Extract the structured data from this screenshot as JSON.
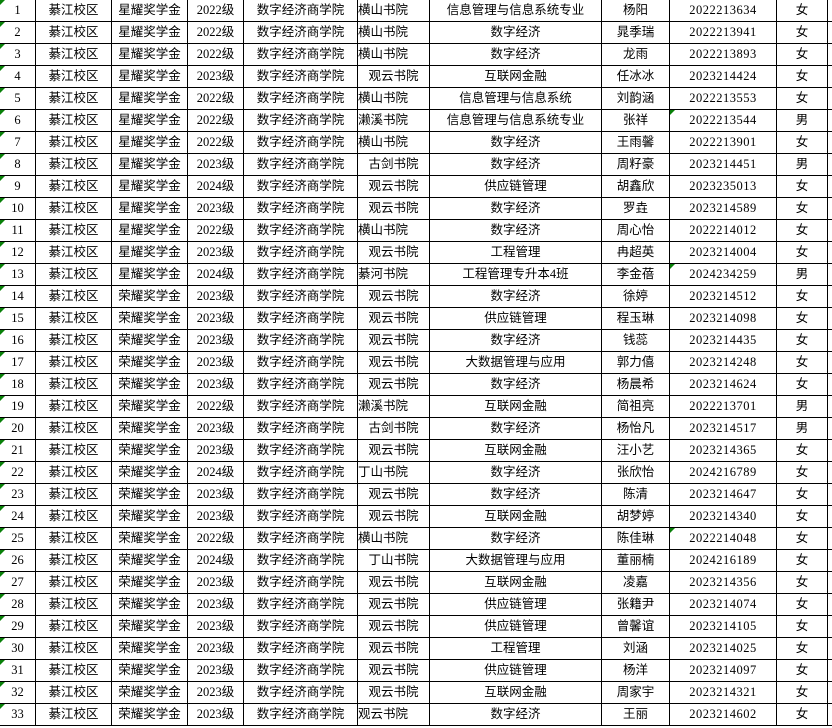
{
  "table": {
    "colors": {
      "grid": "#000000",
      "background": "#ffffff",
      "text": "#000000",
      "comment_triangle": "#088008"
    },
    "column_keys": [
      "index",
      "campus",
      "scholarship",
      "grade",
      "college",
      "academy",
      "major",
      "name",
      "id",
      "gender"
    ],
    "rows": [
      {
        "index": "1",
        "campus": "綦江校区",
        "scholarship": "星耀奖学金",
        "grade": "2022级",
        "college": "数字经济商学院",
        "academy": "横山书院",
        "academy_align": "left",
        "major": "信息管理与信息系统专业",
        "name": "杨阳",
        "id": "2022213634",
        "id_triangle": false,
        "gender": "女"
      },
      {
        "index": "2",
        "campus": "綦江校区",
        "scholarship": "星耀奖学金",
        "grade": "2022级",
        "college": "数字经济商学院",
        "academy": "横山书院",
        "academy_align": "left",
        "major": "数字经济",
        "name": "晁季瑞",
        "id": "2022213941",
        "id_triangle": false,
        "gender": "女"
      },
      {
        "index": "3",
        "campus": "綦江校区",
        "scholarship": "星耀奖学金",
        "grade": "2022级",
        "college": "数字经济商学院",
        "academy": "横山书院",
        "academy_align": "left",
        "major": "数字经济",
        "name": "龙雨",
        "id": "2022213893",
        "id_triangle": false,
        "gender": "女"
      },
      {
        "index": "4",
        "campus": "綦江校区",
        "scholarship": "星耀奖学金",
        "grade": "2023级",
        "college": "数字经济商学院",
        "academy": "观云书院",
        "academy_align": "center",
        "major": "互联网金融",
        "name": "任冰冰",
        "id": "2023214424",
        "id_triangle": false,
        "gender": "女"
      },
      {
        "index": "5",
        "campus": "綦江校区",
        "scholarship": "星耀奖学金",
        "grade": "2022级",
        "college": "数字经济商学院",
        "academy": "横山书院",
        "academy_align": "left",
        "major": "信息管理与信息系统",
        "name": "刘韵涵",
        "id": "2022213553",
        "id_triangle": false,
        "gender": "女"
      },
      {
        "index": "6",
        "campus": "綦江校区",
        "scholarship": "星耀奖学金",
        "grade": "2022级",
        "college": "数字经济商学院",
        "academy": "濑溪书院",
        "academy_align": "left",
        "major": "信息管理与信息系统专业",
        "name": "张祥",
        "id": "2022213544",
        "id_triangle": true,
        "gender": "男"
      },
      {
        "index": "7",
        "campus": "綦江校区",
        "scholarship": "星耀奖学金",
        "grade": "2022级",
        "college": "数字经济商学院",
        "academy": "横山书院",
        "academy_align": "left",
        "major": "数字经济",
        "name": "王雨馨",
        "id": "2022213901",
        "id_triangle": false,
        "gender": "女"
      },
      {
        "index": "8",
        "campus": "綦江校区",
        "scholarship": "星耀奖学金",
        "grade": "2023级",
        "college": "数字经济商学院",
        "academy": "古剑书院",
        "academy_align": "center",
        "major": "数字经济",
        "name": "周籽豪",
        "id": "2023214451",
        "id_triangle": false,
        "gender": "男"
      },
      {
        "index": "9",
        "campus": "綦江校区",
        "scholarship": "星耀奖学金",
        "grade": "2024级",
        "college": "数字经济商学院",
        "academy": "观云书院",
        "academy_align": "center",
        "major": "供应链管理",
        "name": "胡鑫欣",
        "id": "2023235013",
        "id_triangle": false,
        "gender": "女"
      },
      {
        "index": "10",
        "campus": "綦江校区",
        "scholarship": "星耀奖学金",
        "grade": "2023级",
        "college": "数字经济商学院",
        "academy": "观云书院",
        "academy_align": "center",
        "major": "数字经济",
        "name": "罗垚",
        "id": "2023214589",
        "id_triangle": false,
        "gender": "女"
      },
      {
        "index": "11",
        "campus": "綦江校区",
        "scholarship": "星耀奖学金",
        "grade": "2022级",
        "college": "数字经济商学院",
        "academy": "横山书院",
        "academy_align": "left",
        "major": "数字经济",
        "name": "周心怡",
        "id": "2022214012",
        "id_triangle": false,
        "gender": "女"
      },
      {
        "index": "12",
        "campus": "綦江校区",
        "scholarship": "星耀奖学金",
        "grade": "2023级",
        "college": "数字经济商学院",
        "academy": "观云书院",
        "academy_align": "center",
        "major": "工程管理",
        "name": "冉超英",
        "id": "2023214004",
        "id_triangle": false,
        "gender": "女"
      },
      {
        "index": "13",
        "campus": "綦江校区",
        "scholarship": "星耀奖学金",
        "grade": "2024级",
        "college": "数字经济商学院",
        "academy": "綦河书院",
        "academy_align": "left",
        "major": "工程管理专升本4班",
        "name": "李金蓓",
        "id": "2024234259",
        "id_triangle": true,
        "gender": "男"
      },
      {
        "index": "14",
        "campus": "綦江校区",
        "scholarship": "荣耀奖学金",
        "grade": "2023级",
        "college": "数字经济商学院",
        "academy": "观云书院",
        "academy_align": "center",
        "major": "数字经济",
        "name": "徐婷",
        "id": "2023214512",
        "id_triangle": false,
        "gender": "女"
      },
      {
        "index": "15",
        "campus": "綦江校区",
        "scholarship": "荣耀奖学金",
        "grade": "2023级",
        "college": "数字经济商学院",
        "academy": "观云书院",
        "academy_align": "center",
        "major": "供应链管理",
        "name": "程玉琳",
        "id": "2023214098",
        "id_triangle": false,
        "gender": "女"
      },
      {
        "index": "16",
        "campus": "綦江校区",
        "scholarship": "荣耀奖学金",
        "grade": "2023级",
        "college": "数字经济商学院",
        "academy": "观云书院",
        "academy_align": "center",
        "major": "数字经济",
        "name": "钱蕊",
        "id": "2023214435",
        "id_triangle": false,
        "gender": "女"
      },
      {
        "index": "17",
        "campus": "綦江校区",
        "scholarship": "荣耀奖学金",
        "grade": "2023级",
        "college": "数字经济商学院",
        "academy": "观云书院",
        "academy_align": "center",
        "major": "大数据管理与应用",
        "name": "郭力僖",
        "id": "2023214248",
        "id_triangle": false,
        "gender": "女"
      },
      {
        "index": "18",
        "campus": "綦江校区",
        "scholarship": "荣耀奖学金",
        "grade": "2023级",
        "college": "数字经济商学院",
        "academy": "观云书院",
        "academy_align": "center",
        "major": "数字经济",
        "name": "杨晨希",
        "id": "2023214624",
        "id_triangle": false,
        "gender": "女"
      },
      {
        "index": "19",
        "campus": "綦江校区",
        "scholarship": "荣耀奖学金",
        "grade": "2022级",
        "college": "数字经济商学院",
        "academy": "濑溪书院",
        "academy_align": "left",
        "major": "互联网金融",
        "name": "简祖亮",
        "id": "2022213701",
        "id_triangle": false,
        "gender": "男"
      },
      {
        "index": "20",
        "campus": "綦江校区",
        "scholarship": "荣耀奖学金",
        "grade": "2023级",
        "college": "数字经济商学院",
        "academy": "古剑书院",
        "academy_align": "center",
        "major": "数字经济",
        "name": "杨怡凡",
        "id": "2023214517",
        "id_triangle": false,
        "gender": "男"
      },
      {
        "index": "21",
        "campus": "綦江校区",
        "scholarship": "荣耀奖学金",
        "grade": "2023级",
        "college": "数字经济商学院",
        "academy": "观云书院",
        "academy_align": "center",
        "major": "互联网金融",
        "name": "汪小艺",
        "id": "2023214365",
        "id_triangle": false,
        "gender": "女"
      },
      {
        "index": "22",
        "campus": "綦江校区",
        "scholarship": "荣耀奖学金",
        "grade": "2024级",
        "college": "数字经济商学院",
        "academy": "丁山书院",
        "academy_align": "left",
        "major": "数字经济",
        "name": "张欣怡",
        "id": "2024216789",
        "id_triangle": false,
        "gender": "女"
      },
      {
        "index": "23",
        "campus": "綦江校区",
        "scholarship": "荣耀奖学金",
        "grade": "2023级",
        "college": "数字经济商学院",
        "academy": "观云书院",
        "academy_align": "center",
        "major": "数字经济",
        "name": "陈清",
        "id": "2023214647",
        "id_triangle": false,
        "gender": "女"
      },
      {
        "index": "24",
        "campus": "綦江校区",
        "scholarship": "荣耀奖学金",
        "grade": "2023级",
        "college": "数字经济商学院",
        "academy": "观云书院",
        "academy_align": "center",
        "major": "互联网金融",
        "name": "胡梦婷",
        "id": "2023214340",
        "id_triangle": false,
        "gender": "女"
      },
      {
        "index": "25",
        "campus": "綦江校区",
        "scholarship": "荣耀奖学金",
        "grade": "2022级",
        "college": "数字经济商学院",
        "academy": "横山书院",
        "academy_align": "left",
        "major": "数字经济",
        "name": "陈佳琳",
        "id": "2022214048",
        "id_triangle": true,
        "gender": "女"
      },
      {
        "index": "26",
        "campus": "綦江校区",
        "scholarship": "荣耀奖学金",
        "grade": "2024级",
        "college": "数字经济商学院",
        "academy": "丁山书院",
        "academy_align": "center",
        "major": "大数据管理与应用",
        "name": "董丽楠",
        "id": "2024216189",
        "id_triangle": false,
        "gender": "女"
      },
      {
        "index": "27",
        "campus": "綦江校区",
        "scholarship": "荣耀奖学金",
        "grade": "2023级",
        "college": "数字经济商学院",
        "academy": "观云书院",
        "academy_align": "center",
        "major": "互联网金融",
        "name": "凌嘉",
        "id": "2023214356",
        "id_triangle": false,
        "gender": "女"
      },
      {
        "index": "28",
        "campus": "綦江校区",
        "scholarship": "荣耀奖学金",
        "grade": "2023级",
        "college": "数字经济商学院",
        "academy": "观云书院",
        "academy_align": "center",
        "major": "供应链管理",
        "name": "张籍尹",
        "id": "2023214074",
        "id_triangle": false,
        "gender": "女"
      },
      {
        "index": "29",
        "campus": "綦江校区",
        "scholarship": "荣耀奖学金",
        "grade": "2023级",
        "college": "数字经济商学院",
        "academy": "观云书院",
        "academy_align": "center",
        "major": "供应链管理",
        "name": "曾馨谊",
        "id": "2023214105",
        "id_triangle": false,
        "gender": "女"
      },
      {
        "index": "30",
        "campus": "綦江校区",
        "scholarship": "荣耀奖学金",
        "grade": "2023级",
        "college": "数字经济商学院",
        "academy": "观云书院",
        "academy_align": "center",
        "major": "工程管理",
        "name": "刘涵",
        "id": "2023214025",
        "id_triangle": false,
        "gender": "女"
      },
      {
        "index": "31",
        "campus": "綦江校区",
        "scholarship": "荣耀奖学金",
        "grade": "2023级",
        "college": "数字经济商学院",
        "academy": "观云书院",
        "academy_align": "center",
        "major": "供应链管理",
        "name": "杨洋",
        "id": "2023214097",
        "id_triangle": false,
        "gender": "女"
      },
      {
        "index": "32",
        "campus": "綦江校区",
        "scholarship": "荣耀奖学金",
        "grade": "2023级",
        "college": "数字经济商学院",
        "academy": "观云书院",
        "academy_align": "center",
        "major": "互联网金融",
        "name": "周家宇",
        "id": "2023214321",
        "id_triangle": false,
        "gender": "女"
      },
      {
        "index": "33",
        "campus": "綦江校区",
        "scholarship": "荣耀奖学金",
        "grade": "2023级",
        "college": "数字经济商学院",
        "academy": "观云书院",
        "academy_align": "left",
        "major": "数字经济",
        "name": "王丽",
        "id": "2023214602",
        "id_triangle": false,
        "gender": "女"
      }
    ]
  }
}
